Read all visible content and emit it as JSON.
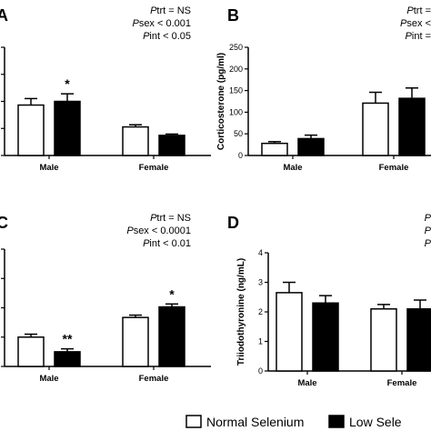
{
  "chart_data": [
    {
      "panel": "A",
      "type": "bar",
      "ylabel": "",
      "ylim": [
        0,
        50
      ],
      "yticks": [],
      "categories": [
        "Male",
        "Female"
      ],
      "series": [
        {
          "name": "Normal Selenium",
          "values": [
            23.3,
            13.2
          ],
          "errors": [
            3.0,
            1.0
          ]
        },
        {
          "name": "Low Selenium",
          "values": [
            25.0,
            9.3
          ],
          "errors": [
            3.5,
            0.6
          ]
        }
      ],
      "markers": [
        {
          "category": 0,
          "series": 1,
          "text": "*"
        }
      ],
      "stats": [
        {
          "label": "P",
          "rest": "trt = NS"
        },
        {
          "label": "P",
          "rest": "sex < 0.001"
        },
        {
          "label": "P",
          "rest": "int < 0.05"
        }
      ]
    },
    {
      "panel": "B",
      "type": "bar",
      "ylabel": "Corticosterone (pg/ml)",
      "ylim": [
        0,
        250
      ],
      "yticks": [
        0,
        50,
        100,
        150,
        200,
        250
      ],
      "categories": [
        "Male",
        "Female"
      ],
      "series": [
        {
          "name": "Normal Selenium",
          "values": [
            28,
            121
          ],
          "errors": [
            4,
            25
          ]
        },
        {
          "name": "Low Selenium",
          "values": [
            39,
            132
          ],
          "errors": [
            8,
            24
          ]
        }
      ],
      "markers": [],
      "stats": [
        {
          "label": "P",
          "rest": "trt ="
        },
        {
          "label": "P",
          "rest": "sex <"
        },
        {
          "label": "P",
          "rest": "int ="
        }
      ]
    },
    {
      "panel": "C",
      "type": "bar",
      "ylabel": "",
      "ylim": [
        0,
        40
      ],
      "yticks": [],
      "categories": [
        "Male",
        "Female"
      ],
      "series": [
        {
          "name": "Normal Selenium",
          "values": [
            10.0,
            16.7
          ],
          "errors": [
            1.0,
            0.8
          ]
        },
        {
          "name": "Low Selenium",
          "values": [
            5.0,
            20.3
          ],
          "errors": [
            1.0,
            1.0
          ]
        }
      ],
      "markers": [
        {
          "category": 0,
          "series": 1,
          "text": "**"
        },
        {
          "category": 1,
          "series": 1,
          "text": "*"
        }
      ],
      "stats": [
        {
          "label": "P",
          "rest": "trt = NS"
        },
        {
          "label": "P",
          "rest": "sex < 0.0001"
        },
        {
          "label": "P",
          "rest": "int < 0.01"
        }
      ]
    },
    {
      "panel": "D",
      "type": "bar",
      "ylabel": "Triiodothyronine (ng/mL)",
      "ylim": [
        0,
        4
      ],
      "yticks": [
        0,
        1,
        2,
        3,
        4
      ],
      "categories": [
        "Male",
        "Female"
      ],
      "series": [
        {
          "name": "Normal Selenium",
          "values": [
            2.65,
            2.1
          ],
          "errors": [
            0.35,
            0.15
          ]
        },
        {
          "name": "Low Selenium",
          "values": [
            2.3,
            2.1
          ],
          "errors": [
            0.25,
            0.3
          ]
        }
      ],
      "markers": [],
      "stats": [
        {
          "label": "P",
          "rest": ""
        },
        {
          "label": "P",
          "rest": ""
        },
        {
          "label": "P",
          "rest": ""
        }
      ]
    }
  ],
  "legend": {
    "items": [
      {
        "label": "Normal Selenium",
        "fill": "#ffffff"
      },
      {
        "label": "Low Sele",
        "fill": "#000000"
      }
    ],
    "position": "bottom"
  },
  "colors": {
    "normal": "#ffffff",
    "low": "#000000",
    "stroke": "#000000"
  }
}
